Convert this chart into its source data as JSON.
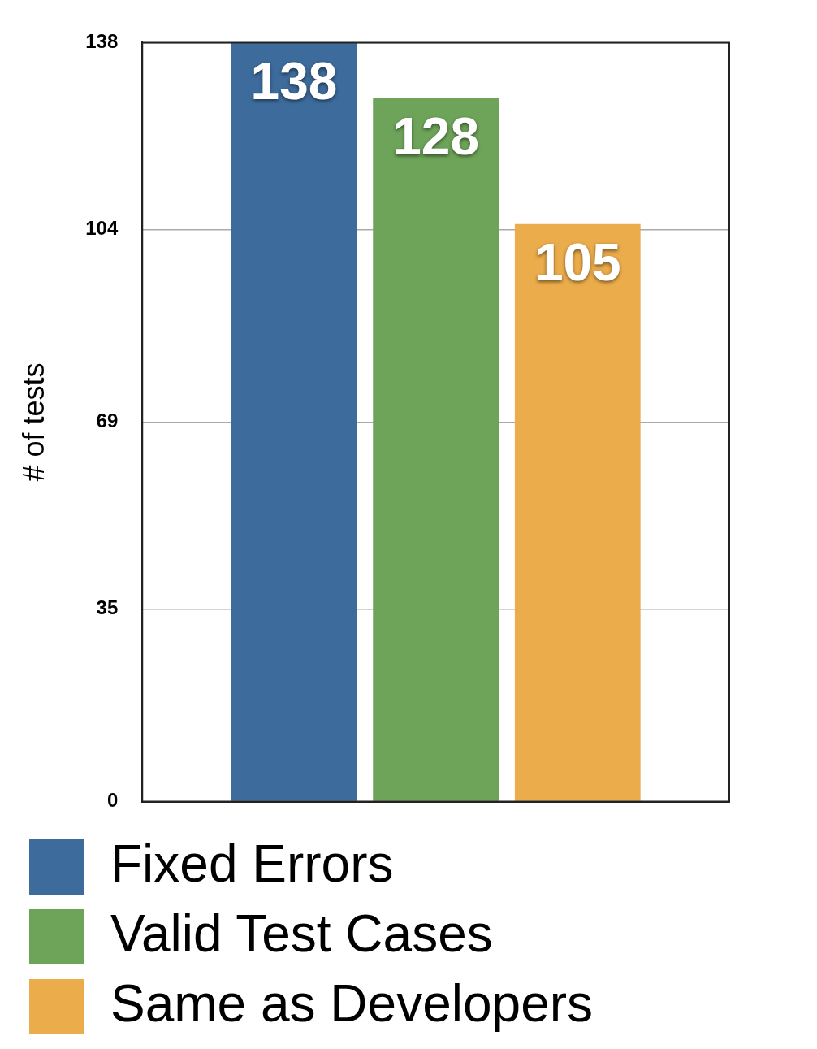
{
  "chart_data": {
    "type": "bar",
    "ylabel": "# of tests",
    "categories": [
      null
    ],
    "series": [
      {
        "name": "Fixed Errors",
        "color": "#3d6b9c",
        "values": [
          138
        ]
      },
      {
        "name": "Valid Test Cases",
        "color": "#6ea459",
        "values": [
          128
        ]
      },
      {
        "name": "Same as Developers",
        "color": "#ebac4b",
        "values": [
          105
        ]
      }
    ],
    "ylim": [
      0,
      138
    ],
    "yticks": [
      0,
      35,
      69,
      104,
      138
    ],
    "grid": "y",
    "legend": "bottom",
    "data_labels": true
  }
}
